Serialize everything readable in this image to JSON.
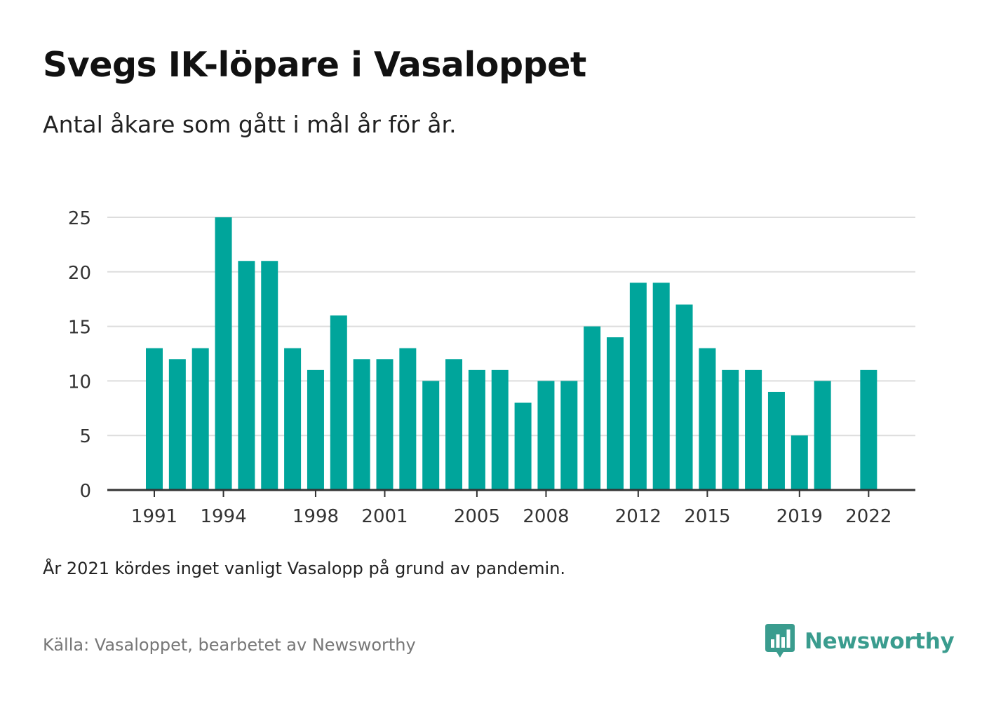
{
  "title": "Svegs IK-löpare i Vasaloppet",
  "subtitle": "Antal åkare som gått i mål år för år.",
  "note": "År 2021 kördes inget vanligt Vasalopp på grund av pandemin.",
  "source": "Källa: Vasaloppet, bearbetet av Newsworthy",
  "brand": {
    "name": "Newsworthy",
    "logo_icon": "newsworthy-logo-icon",
    "color": "#3a9c8e"
  },
  "colors": {
    "bar": "#00a59b",
    "grid": "#dddddd",
    "axis": "#333333"
  },
  "chart_data": {
    "type": "bar",
    "title": "Svegs IK-löpare i Vasaloppet",
    "xlabel": "",
    "ylabel": "",
    "categories": [
      1991,
      1992,
      1993,
      1994,
      1995,
      1996,
      1997,
      1998,
      1999,
      2000,
      2001,
      2002,
      2003,
      2004,
      2005,
      2006,
      2007,
      2008,
      2009,
      2010,
      2011,
      2012,
      2013,
      2014,
      2015,
      2016,
      2017,
      2018,
      2019,
      2020,
      2021,
      2022
    ],
    "values": [
      13,
      12,
      13,
      25,
      21,
      21,
      13,
      11,
      16,
      12,
      12,
      13,
      10,
      12,
      11,
      11,
      8,
      10,
      10,
      15,
      14,
      19,
      19,
      17,
      13,
      11,
      11,
      9,
      5,
      10,
      null,
      11
    ],
    "x_tick_labels": [
      "1991",
      "1994",
      "1998",
      "2001",
      "2005",
      "2008",
      "2012",
      "2015",
      "2019",
      "2022"
    ],
    "y_ticks": [
      0,
      5,
      10,
      15,
      20,
      25
    ],
    "ylim": [
      0,
      25
    ],
    "grid": true,
    "legend": "none"
  }
}
